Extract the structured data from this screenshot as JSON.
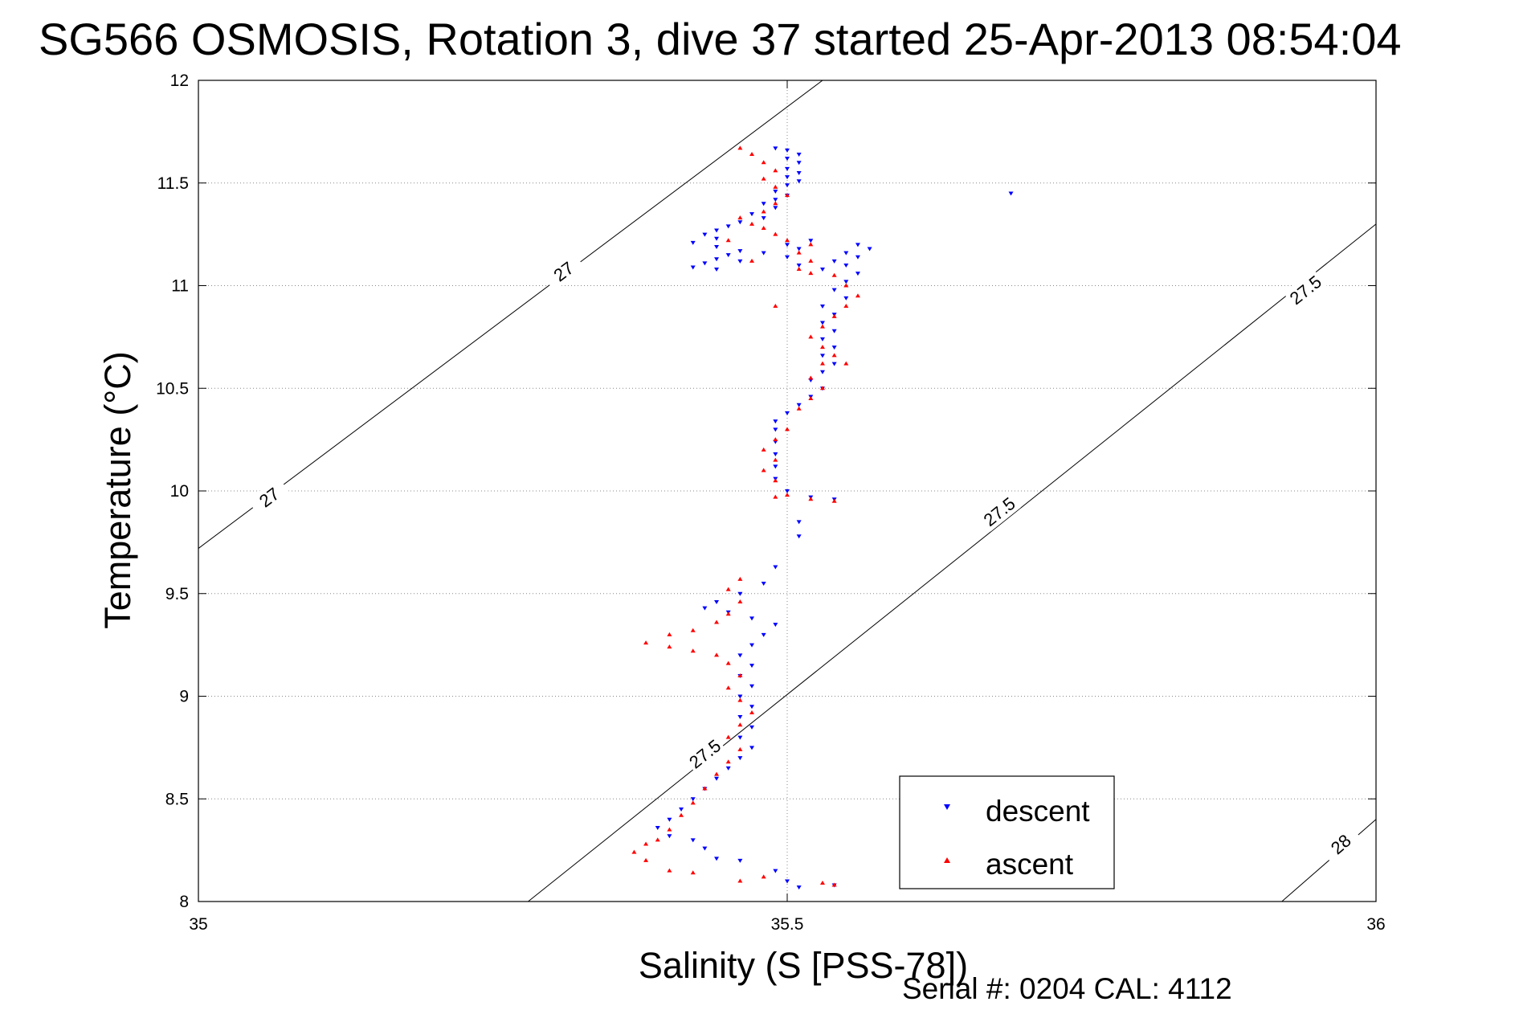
{
  "chart_data": {
    "type": "scatter",
    "title": "SG566 OSMOSIS, Rotation 3, dive 37 started 25-Apr-2013 08:54:04",
    "xlabel": "Salinity (S [PSS-78])",
    "ylabel": "Temperature (°C)",
    "xlim": [
      35,
      36
    ],
    "ylim": [
      8,
      12
    ],
    "x_ticks": [
      "35",
      "35.5",
      "36"
    ],
    "y_ticks": [
      "8",
      "8.5",
      "9",
      "9.5",
      "10",
      "10.5",
      "11",
      "11.5",
      "12"
    ],
    "grid": "dotted",
    "legend_position": "bottom-right",
    "density_contours": [
      {
        "label": "27",
        "points": [
          [
            35.0,
            9.72
          ],
          [
            35.53,
            12.0
          ]
        ],
        "label_positions": [
          [
            35.06,
            9.97
          ],
          [
            35.31,
            11.07
          ]
        ]
      },
      {
        "label": "27.5",
        "points": [
          [
            35.28,
            8.0
          ],
          [
            36.0,
            11.3
          ]
        ],
        "label_positions": [
          [
            35.43,
            8.72
          ],
          [
            35.68,
            9.9
          ],
          [
            35.94,
            10.98
          ]
        ]
      },
      {
        "label": "28",
        "points": [
          [
            35.92,
            8.0
          ],
          [
            36.0,
            8.4
          ]
        ],
        "label_positions": [
          [
            35.97,
            8.28
          ]
        ]
      }
    ],
    "series": [
      {
        "name": "descent",
        "color": "#0000ff",
        "marker": "triangle-down",
        "points": [
          [
            35.49,
            11.67
          ],
          [
            35.5,
            11.66
          ],
          [
            35.51,
            11.64
          ],
          [
            35.5,
            11.62
          ],
          [
            35.51,
            11.6
          ],
          [
            35.5,
            11.57
          ],
          [
            35.51,
            11.55
          ],
          [
            35.5,
            11.53
          ],
          [
            35.51,
            11.51
          ],
          [
            35.5,
            11.49
          ],
          [
            35.49,
            11.46
          ],
          [
            35.5,
            11.44
          ],
          [
            35.49,
            11.42
          ],
          [
            35.48,
            11.4
          ],
          [
            35.49,
            11.38
          ],
          [
            35.47,
            11.35
          ],
          [
            35.48,
            11.33
          ],
          [
            35.46,
            11.31
          ],
          [
            35.45,
            11.29
          ],
          [
            35.44,
            11.27
          ],
          [
            35.43,
            11.25
          ],
          [
            35.44,
            11.23
          ],
          [
            35.42,
            11.21
          ],
          [
            35.44,
            11.19
          ],
          [
            35.46,
            11.17
          ],
          [
            35.45,
            11.15
          ],
          [
            35.44,
            11.13
          ],
          [
            35.43,
            11.11
          ],
          [
            35.42,
            11.09
          ],
          [
            35.44,
            11.08
          ],
          [
            35.46,
            11.12
          ],
          [
            35.48,
            11.16
          ],
          [
            35.5,
            11.2
          ],
          [
            35.52,
            11.22
          ],
          [
            35.51,
            11.18
          ],
          [
            35.5,
            11.14
          ],
          [
            35.51,
            11.1
          ],
          [
            35.53,
            11.08
          ],
          [
            35.54,
            11.12
          ],
          [
            35.55,
            11.16
          ],
          [
            35.56,
            11.2
          ],
          [
            35.57,
            11.18
          ],
          [
            35.56,
            11.14
          ],
          [
            35.55,
            11.1
          ],
          [
            35.56,
            11.06
          ],
          [
            35.55,
            11.02
          ],
          [
            35.54,
            10.98
          ],
          [
            35.55,
            10.94
          ],
          [
            35.53,
            10.9
          ],
          [
            35.54,
            10.86
          ],
          [
            35.53,
            10.82
          ],
          [
            35.54,
            10.78
          ],
          [
            35.53,
            10.74
          ],
          [
            35.54,
            10.7
          ],
          [
            35.53,
            10.66
          ],
          [
            35.54,
            10.62
          ],
          [
            35.53,
            10.58
          ],
          [
            35.52,
            10.54
          ],
          [
            35.53,
            10.5
          ],
          [
            35.52,
            10.46
          ],
          [
            35.51,
            10.42
          ],
          [
            35.5,
            10.38
          ],
          [
            35.49,
            10.34
          ],
          [
            35.49,
            10.3
          ],
          [
            35.49,
            10.24
          ],
          [
            35.49,
            10.18
          ],
          [
            35.49,
            10.12
          ],
          [
            35.49,
            10.06
          ],
          [
            35.5,
            10.0
          ],
          [
            35.52,
            9.97
          ],
          [
            35.54,
            9.96
          ],
          [
            35.51,
            9.85
          ],
          [
            35.51,
            9.78
          ],
          [
            35.49,
            9.63
          ],
          [
            35.48,
            9.55
          ],
          [
            35.46,
            9.5
          ],
          [
            35.44,
            9.46
          ],
          [
            35.43,
            9.43
          ],
          [
            35.45,
            9.41
          ],
          [
            35.47,
            9.38
          ],
          [
            35.49,
            9.35
          ],
          [
            35.48,
            9.3
          ],
          [
            35.47,
            9.25
          ],
          [
            35.46,
            9.2
          ],
          [
            35.47,
            9.15
          ],
          [
            35.46,
            9.1
          ],
          [
            35.47,
            9.05
          ],
          [
            35.46,
            9.0
          ],
          [
            35.47,
            8.95
          ],
          [
            35.46,
            8.9
          ],
          [
            35.47,
            8.85
          ],
          [
            35.46,
            8.8
          ],
          [
            35.47,
            8.75
          ],
          [
            35.46,
            8.7
          ],
          [
            35.45,
            8.65
          ],
          [
            35.44,
            8.6
          ],
          [
            35.43,
            8.55
          ],
          [
            35.42,
            8.5
          ],
          [
            35.41,
            8.45
          ],
          [
            35.4,
            8.4
          ],
          [
            35.39,
            8.36
          ],
          [
            35.4,
            8.32
          ],
          [
            35.42,
            8.3
          ],
          [
            35.43,
            8.26
          ],
          [
            35.44,
            8.21
          ],
          [
            35.46,
            8.2
          ],
          [
            35.49,
            8.15
          ],
          [
            35.5,
            8.1
          ],
          [
            35.51,
            8.07
          ],
          [
            35.54,
            8.08
          ],
          [
            35.69,
            11.45
          ]
        ]
      },
      {
        "name": "ascent",
        "color": "#ff0000",
        "marker": "triangle-up",
        "points": [
          [
            35.54,
            8.08
          ],
          [
            35.53,
            8.09
          ],
          [
            35.48,
            8.12
          ],
          [
            35.46,
            8.1
          ],
          [
            35.42,
            8.14
          ],
          [
            35.4,
            8.15
          ],
          [
            35.38,
            8.2
          ],
          [
            35.37,
            8.24
          ],
          [
            35.38,
            8.28
          ],
          [
            35.39,
            8.3
          ],
          [
            35.4,
            8.35
          ],
          [
            35.41,
            8.42
          ],
          [
            35.42,
            8.48
          ],
          [
            35.43,
            8.55
          ],
          [
            35.44,
            8.62
          ],
          [
            35.45,
            8.68
          ],
          [
            35.46,
            8.74
          ],
          [
            35.45,
            8.8
          ],
          [
            35.46,
            8.86
          ],
          [
            35.47,
            8.92
          ],
          [
            35.46,
            8.98
          ],
          [
            35.45,
            9.04
          ],
          [
            35.46,
            9.1
          ],
          [
            35.45,
            9.16
          ],
          [
            35.44,
            9.2
          ],
          [
            35.42,
            9.22
          ],
          [
            35.4,
            9.24
          ],
          [
            35.38,
            9.26
          ],
          [
            35.4,
            9.3
          ],
          [
            35.42,
            9.32
          ],
          [
            35.44,
            9.36
          ],
          [
            35.45,
            9.4
          ],
          [
            35.46,
            9.46
          ],
          [
            35.45,
            9.52
          ],
          [
            35.46,
            9.57
          ],
          [
            35.49,
            9.97
          ],
          [
            35.5,
            9.98
          ],
          [
            35.52,
            9.96
          ],
          [
            35.54,
            9.95
          ],
          [
            35.49,
            10.05
          ],
          [
            35.48,
            10.1
          ],
          [
            35.49,
            10.15
          ],
          [
            35.48,
            10.2
          ],
          [
            35.49,
            10.25
          ],
          [
            35.5,
            10.3
          ],
          [
            35.51,
            10.4
          ],
          [
            35.52,
            10.45
          ],
          [
            35.53,
            10.5
          ],
          [
            35.52,
            10.55
          ],
          [
            35.53,
            10.62
          ],
          [
            35.54,
            10.66
          ],
          [
            35.53,
            10.7
          ],
          [
            35.52,
            10.75
          ],
          [
            35.53,
            10.8
          ],
          [
            35.54,
            10.85
          ],
          [
            35.55,
            10.9
          ],
          [
            35.56,
            10.95
          ],
          [
            35.55,
            11.0
          ],
          [
            35.54,
            11.05
          ],
          [
            35.52,
            11.06
          ],
          [
            35.51,
            11.08
          ],
          [
            35.52,
            11.12
          ],
          [
            35.51,
            11.16
          ],
          [
            35.52,
            11.2
          ],
          [
            35.5,
            11.22
          ],
          [
            35.49,
            11.25
          ],
          [
            35.48,
            11.28
          ],
          [
            35.47,
            11.3
          ],
          [
            35.46,
            11.33
          ],
          [
            35.48,
            11.36
          ],
          [
            35.49,
            11.4
          ],
          [
            35.5,
            11.44
          ],
          [
            35.49,
            11.48
          ],
          [
            35.48,
            11.52
          ],
          [
            35.49,
            11.56
          ],
          [
            35.48,
            11.6
          ],
          [
            35.47,
            11.64
          ],
          [
            35.46,
            11.67
          ],
          [
            35.47,
            11.12
          ],
          [
            35.45,
            11.22
          ],
          [
            35.49,
            10.9
          ],
          [
            35.55,
            10.62
          ]
        ]
      }
    ]
  },
  "footer": {
    "serial_text": "Serial #: 0204  CAL: 4112"
  }
}
